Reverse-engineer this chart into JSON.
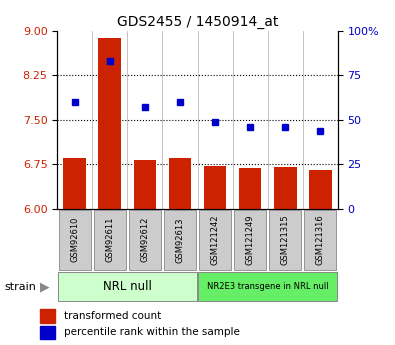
{
  "title": "GDS2455 / 1450914_at",
  "samples": [
    "GSM92610",
    "GSM92611",
    "GSM92612",
    "GSM92613",
    "GSM121242",
    "GSM121249",
    "GSM121315",
    "GSM121316"
  ],
  "bar_values": [
    6.85,
    8.88,
    6.82,
    6.86,
    6.72,
    6.69,
    6.7,
    6.65
  ],
  "percentile_values": [
    60,
    83,
    57,
    60,
    49,
    46,
    46,
    44
  ],
  "bar_color": "#cc2200",
  "percentile_color": "#0000cc",
  "ylim_left": [
    6,
    9
  ],
  "ylim_right": [
    0,
    100
  ],
  "yticks_left": [
    6,
    6.75,
    7.5,
    8.25,
    9
  ],
  "yticks_right": [
    0,
    25,
    50,
    75,
    100
  ],
  "ytick_labels_right": [
    "0",
    "25",
    "50",
    "75",
    "100%"
  ],
  "group1_label": "NRL null",
  "group2_label": "NR2E3 transgene in NRL null",
  "group1_indices": [
    0,
    1,
    2,
    3
  ],
  "group2_indices": [
    4,
    5,
    6,
    7
  ],
  "group1_color": "#ccffcc",
  "group2_color": "#66ee66",
  "strain_label": "strain",
  "legend_bar_label": "transformed count",
  "legend_pct_label": "percentile rank within the sample",
  "xticklabel_bg": "#cccccc",
  "bar_bottom": 6.0,
  "bar_width": 0.65
}
